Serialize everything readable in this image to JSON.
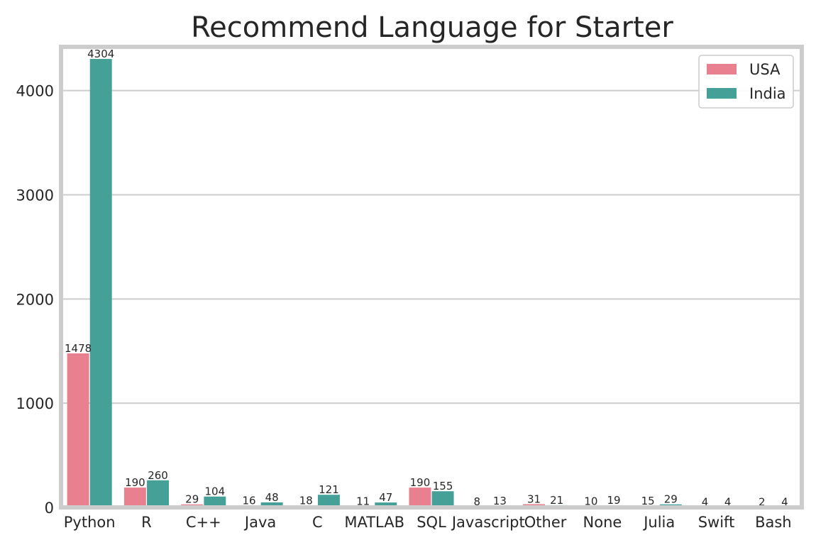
{
  "chart_data": {
    "type": "bar",
    "title": "Recommend Language for Starter",
    "xlabel": "",
    "ylabel": "",
    "categories": [
      "Python",
      "R",
      "C++",
      "Java",
      "C",
      "MATLAB",
      "SQL",
      "Javascript",
      "Other",
      "None",
      "Julia",
      "Swift",
      "Bash"
    ],
    "series": [
      {
        "name": "USA",
        "color": "#e8808f",
        "values": [
          1478,
          190,
          29,
          16,
          18,
          11,
          190,
          8,
          31,
          10,
          15,
          4,
          2
        ]
      },
      {
        "name": "India",
        "color": "#45a098",
        "values": [
          4304,
          260,
          104,
          48,
          121,
          47,
          155,
          13,
          21,
          19,
          29,
          4,
          4
        ]
      }
    ],
    "ylim": [
      0,
      4420
    ],
    "yticks": [
      0,
      1000,
      2000,
      3000,
      4000
    ],
    "grid": "horizontal",
    "legend_position": "top-right"
  }
}
